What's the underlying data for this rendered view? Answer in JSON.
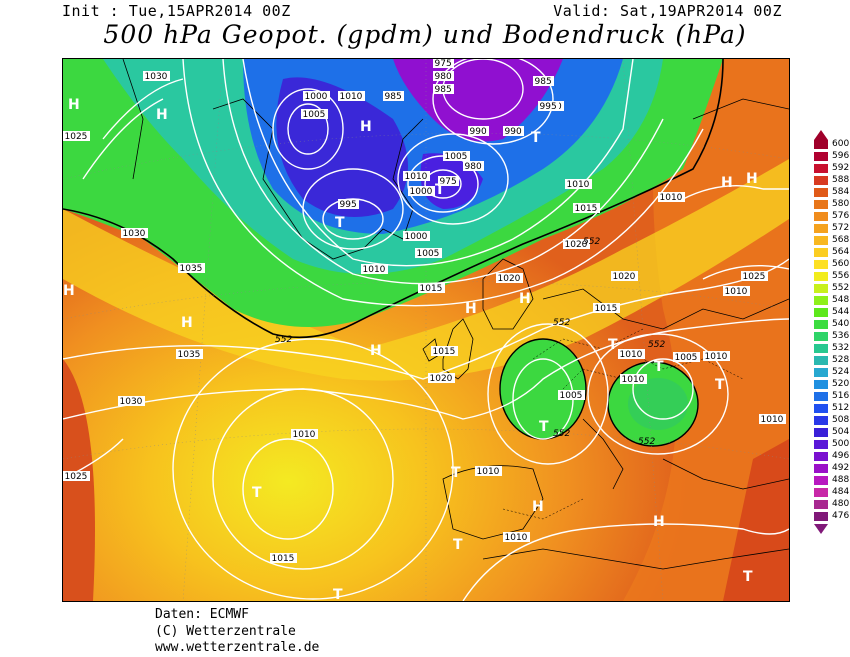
{
  "header": {
    "init": "Init : Tue,15APR2014 00Z",
    "valid": "Valid: Sat,19APR2014 00Z",
    "title": "500 hPa Geopot. (gpdm) und Bodendruck (hPa)"
  },
  "footer": {
    "line1": "Daten: ECMWF",
    "line2": "(C) Wetterzentrale",
    "line3": "www.wetterzentrale.de"
  },
  "legend": {
    "values": [
      600,
      596,
      592,
      588,
      584,
      580,
      576,
      572,
      568,
      564,
      560,
      556,
      552,
      548,
      544,
      540,
      536,
      532,
      528,
      524,
      520,
      516,
      512,
      508,
      504,
      500,
      496,
      492,
      488,
      484,
      480,
      476
    ],
    "colors": [
      "#a0002a",
      "#b00030",
      "#c8102e",
      "#d83a20",
      "#e05a18",
      "#e8761a",
      "#f08c1c",
      "#f5a21e",
      "#f8b820",
      "#fbcd22",
      "#fde024",
      "#f2ec1c",
      "#c8f01c",
      "#8ef01a",
      "#5ee81c",
      "#3cdc40",
      "#2ed468",
      "#28c890",
      "#2ab8b0",
      "#28a8d0",
      "#2090e0",
      "#1e70e8",
      "#2050f0",
      "#2a38e8",
      "#3a20d8",
      "#5a18d8",
      "#7a10d0",
      "#9a10c8",
      "#b818c0",
      "#c828a8",
      "#a82890",
      "#801878"
    ]
  },
  "map": {
    "pressure_labels": [
      "975",
      "980",
      "985",
      "985",
      "990",
      "990",
      "1000",
      "1005",
      "1010",
      "1010",
      "1005",
      "1000",
      "995",
      "990",
      "980",
      "975",
      "985",
      "995",
      "1000",
      "1005",
      "1010",
      "1010",
      "1015",
      "1015",
      "1020",
      "1020",
      "1015",
      "1010",
      "1010",
      "1020",
      "1035",
      "1030",
      "1035",
      "1030",
      "1025",
      "1025",
      "1010",
      "1015",
      "1010",
      "1010",
      "1010",
      "1005",
      "1010",
      "1010",
      "1010",
      "1025",
      "1015",
      "1020",
      "1005",
      "1030"
    ],
    "geopotential_labels": [
      "552",
      "552",
      "552",
      "552",
      "552",
      "552"
    ],
    "pressure_centers": [
      "H",
      "H",
      "H",
      "H",
      "H",
      "H",
      "H",
      "H",
      "H",
      "H",
      "H",
      "H",
      "T",
      "T",
      "T",
      "T",
      "T",
      "T",
      "T",
      "T",
      "T",
      "T",
      "T",
      "T"
    ]
  }
}
